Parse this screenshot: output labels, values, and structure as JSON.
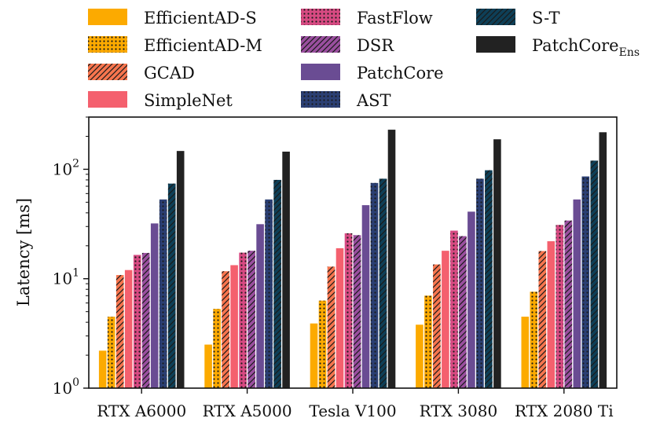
{
  "chart_data": {
    "type": "bar",
    "ylabel": "Latency [ms]",
    "yscale": "log",
    "ylim": [
      1,
      300
    ],
    "yticks": [
      {
        "base": "10",
        "exp": "0"
      },
      {
        "base": "10",
        "exp": "1"
      },
      {
        "base": "10",
        "exp": "2"
      }
    ],
    "categories": [
      "RTX A6000",
      "RTX A5000",
      "Tesla V100",
      "RTX 3080",
      "RTX 2080 Ti"
    ],
    "series": [
      {
        "name": "EfficientAD-S",
        "color": "#fcaa00",
        "pattern": "solid",
        "values": [
          2.2,
          2.5,
          3.9,
          3.8,
          4.5
        ]
      },
      {
        "name": "EfficientAD-M",
        "color": "#fcaa00",
        "pattern": "dots",
        "values": [
          4.5,
          5.3,
          6.3,
          7.0,
          7.6
        ]
      },
      {
        "name": "GCAD",
        "color": "#f7754e",
        "pattern": "hatch",
        "values": [
          10.8,
          11.7,
          12.9,
          13.5,
          17.9
        ]
      },
      {
        "name": "SimpleNet",
        "color": "#f4606e",
        "pattern": "solid",
        "values": [
          12.0,
          13.3,
          19.0,
          18.0,
          22.0
        ]
      },
      {
        "name": "FastFlow",
        "color": "#d74a82",
        "pattern": "dots",
        "values": [
          16.5,
          17.3,
          26.0,
          27.5,
          31.0
        ]
      },
      {
        "name": "DSR",
        "color": "#9a4f9f",
        "pattern": "hatch",
        "values": [
          17.2,
          18.0,
          25.0,
          24.5,
          34.0
        ]
      },
      {
        "name": "PatchCore",
        "color": "#6a4c93",
        "pattern": "solid",
        "values": [
          32.0,
          31.5,
          47.0,
          41.0,
          53.0
        ]
      },
      {
        "name": "AST",
        "color": "#2b3f73",
        "pattern": "dots",
        "values": [
          53.0,
          53.0,
          75.0,
          82.0,
          86.0
        ]
      },
      {
        "name": "S-T",
        "color": "#0e3f57",
        "pattern": "hatch",
        "values": [
          74.0,
          80.0,
          82.0,
          98.0,
          120.0
        ]
      },
      {
        "name": "PatchCore",
        "subscript": "Ens",
        "color": "#222222",
        "pattern": "solid",
        "values": [
          147.0,
          145.0,
          230.0,
          188.0,
          218.0
        ]
      }
    ],
    "legend": "top (4 columns)"
  }
}
